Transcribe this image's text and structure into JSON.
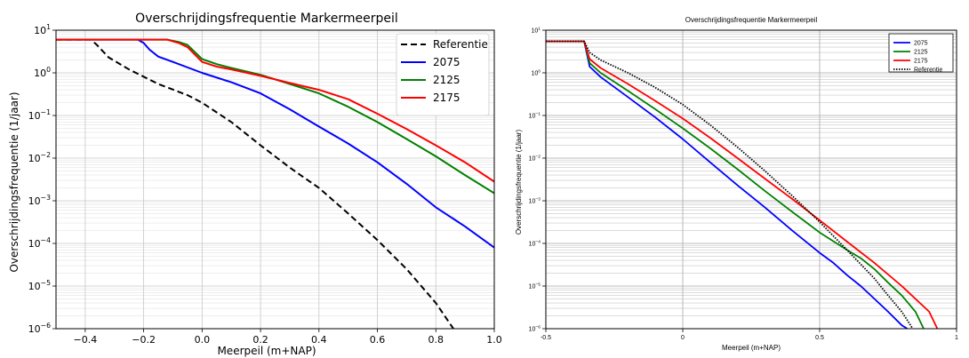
{
  "chart_data": [
    {
      "type": "line",
      "title": "Overschrijdingsfrequentie Markermeerpeil",
      "xlabel": "Meerpeil (m+NAP)",
      "ylabel": "Overschrijdingsfrequentie (1/jaar)",
      "xlim": [
        -0.5,
        1.0
      ],
      "ylim": [
        1e-06,
        10
      ],
      "y_scale": "log",
      "grid": true,
      "legend_position": "top-right",
      "x_ticks": [
        "−0.4",
        "−0.2",
        "0.0",
        "0.2",
        "0.4",
        "0.6",
        "0.8",
        "1.0"
      ],
      "x_tick_values": [
        -0.4,
        -0.2,
        0.0,
        0.2,
        0.4,
        0.6,
        0.8,
        1.0
      ],
      "y_tick_exponents": [
        1,
        0,
        -1,
        -2,
        -3,
        -4,
        -5,
        -6
      ],
      "series": [
        {
          "name": "Referentie",
          "color": "#000000",
          "dash": "dashed",
          "x": [
            -0.5,
            -0.38,
            -0.36,
            -0.32,
            -0.25,
            -0.15,
            -0.05,
            0.0,
            0.1,
            0.2,
            0.3,
            0.4,
            0.5,
            0.6,
            0.7,
            0.8,
            0.86
          ],
          "y": [
            6,
            6,
            4.5,
            2.3,
            1.2,
            0.55,
            0.3,
            0.2,
            0.07,
            0.02,
            0.006,
            0.002,
            0.0005,
            0.00012,
            2.5e-05,
            4e-06,
            1e-06
          ]
        },
        {
          "name": "2075",
          "color": "#0000ff",
          "dash": "solid",
          "x": [
            -0.5,
            -0.22,
            -0.2,
            -0.18,
            -0.15,
            -0.1,
            0.0,
            0.1,
            0.2,
            0.3,
            0.4,
            0.5,
            0.6,
            0.7,
            0.8,
            0.9,
            1.0
          ],
          "y": [
            6,
            6,
            5,
            3.5,
            2.4,
            1.8,
            1.0,
            0.6,
            0.33,
            0.14,
            0.055,
            0.022,
            0.008,
            0.0025,
            0.0007,
            0.00025,
            8e-05
          ]
        },
        {
          "name": "2125",
          "color": "#008000",
          "dash": "solid",
          "x": [
            -0.5,
            -0.12,
            -0.08,
            -0.05,
            0.0,
            0.05,
            0.1,
            0.2,
            0.3,
            0.4,
            0.5,
            0.6,
            0.7,
            0.8,
            0.9,
            1.0
          ],
          "y": [
            6,
            6,
            5.3,
            4.5,
            2.1,
            1.6,
            1.3,
            0.9,
            0.55,
            0.33,
            0.16,
            0.07,
            0.028,
            0.011,
            0.004,
            0.0015
          ]
        },
        {
          "name": "2175",
          "color": "#ff0000",
          "dash": "solid",
          "x": [
            -0.5,
            -0.12,
            -0.08,
            -0.05,
            0.0,
            0.05,
            0.1,
            0.2,
            0.3,
            0.4,
            0.5,
            0.6,
            0.7,
            0.8,
            0.9,
            1.0
          ],
          "y": [
            6,
            6,
            5,
            4,
            1.8,
            1.4,
            1.2,
            0.85,
            0.58,
            0.4,
            0.24,
            0.11,
            0.048,
            0.02,
            0.008,
            0.0028
          ]
        }
      ]
    },
    {
      "type": "line",
      "title": "Overschrijdingsfrequentie Markermeerpeil",
      "xlabel": "Meerpeil (m+NAP)",
      "ylabel": "Overschrijdingsfrequentie (1/jaar)",
      "xlim": [
        -0.5,
        1.0
      ],
      "ylim": [
        1e-06,
        10
      ],
      "y_scale": "log",
      "grid": true,
      "legend_position": "top-right",
      "x_ticks": [
        "-0.5",
        "0",
        "0.5",
        "1"
      ],
      "x_tick_values": [
        -0.5,
        0.0,
        0.5,
        1.0
      ],
      "y_tick_exponents": [
        1,
        0,
        -1,
        -2,
        -3,
        -4,
        -5,
        -6
      ],
      "series": [
        {
          "name": "2075",
          "color": "#0000ff",
          "dash": "solid",
          "x": [
            -0.5,
            -0.36,
            -0.34,
            -0.3,
            -0.2,
            -0.1,
            0.0,
            0.1,
            0.2,
            0.3,
            0.4,
            0.5,
            0.55,
            0.6,
            0.65,
            0.7,
            0.75,
            0.8,
            0.82
          ],
          "y": [
            5.5,
            5.5,
            1.4,
            0.8,
            0.27,
            0.09,
            0.028,
            0.008,
            0.0023,
            0.0007,
            0.0002,
            6e-05,
            3.5e-05,
            1.8e-05,
            1e-05,
            5e-06,
            2.5e-06,
            1.2e-06,
            1e-06
          ]
        },
        {
          "name": "2125",
          "color": "#008000",
          "dash": "solid",
          "x": [
            -0.5,
            -0.36,
            -0.34,
            -0.3,
            -0.2,
            -0.1,
            0.0,
            0.1,
            0.2,
            0.3,
            0.4,
            0.5,
            0.6,
            0.65,
            0.7,
            0.75,
            0.8,
            0.85,
            0.88
          ],
          "y": [
            5.5,
            5.5,
            1.7,
            1.0,
            0.38,
            0.14,
            0.05,
            0.017,
            0.0055,
            0.0017,
            0.00055,
            0.00018,
            7e-05,
            4.5e-05,
            2.5e-05,
            1.2e-05,
            6e-06,
            2.5e-06,
            1e-06
          ]
        },
        {
          "name": "2175",
          "color": "#ff0000",
          "dash": "solid",
          "x": [
            -0.5,
            -0.36,
            -0.34,
            -0.3,
            -0.2,
            -0.1,
            0.0,
            0.1,
            0.2,
            0.3,
            0.4,
            0.5,
            0.6,
            0.7,
            0.8,
            0.9,
            0.93
          ],
          "y": [
            5.5,
            5.5,
            2.1,
            1.3,
            0.55,
            0.22,
            0.085,
            0.03,
            0.01,
            0.0033,
            0.0011,
            0.00035,
            0.00011,
            3.5e-05,
            1e-05,
            2.5e-06,
            1e-06
          ]
        },
        {
          "name": "Referentie",
          "color": "#000000",
          "dash": "dotted",
          "x": [
            -0.5,
            -0.36,
            -0.34,
            -0.3,
            -0.2,
            -0.1,
            0.0,
            0.1,
            0.2,
            0.3,
            0.4,
            0.5,
            0.6,
            0.7,
            0.75,
            0.8,
            0.84
          ],
          "y": [
            5.5,
            5.5,
            3.0,
            2.0,
            1.0,
            0.45,
            0.18,
            0.06,
            0.018,
            0.005,
            0.0013,
            0.00032,
            7e-05,
            1.5e-05,
            6e-06,
            2.5e-06,
            1e-06
          ]
        }
      ]
    }
  ]
}
